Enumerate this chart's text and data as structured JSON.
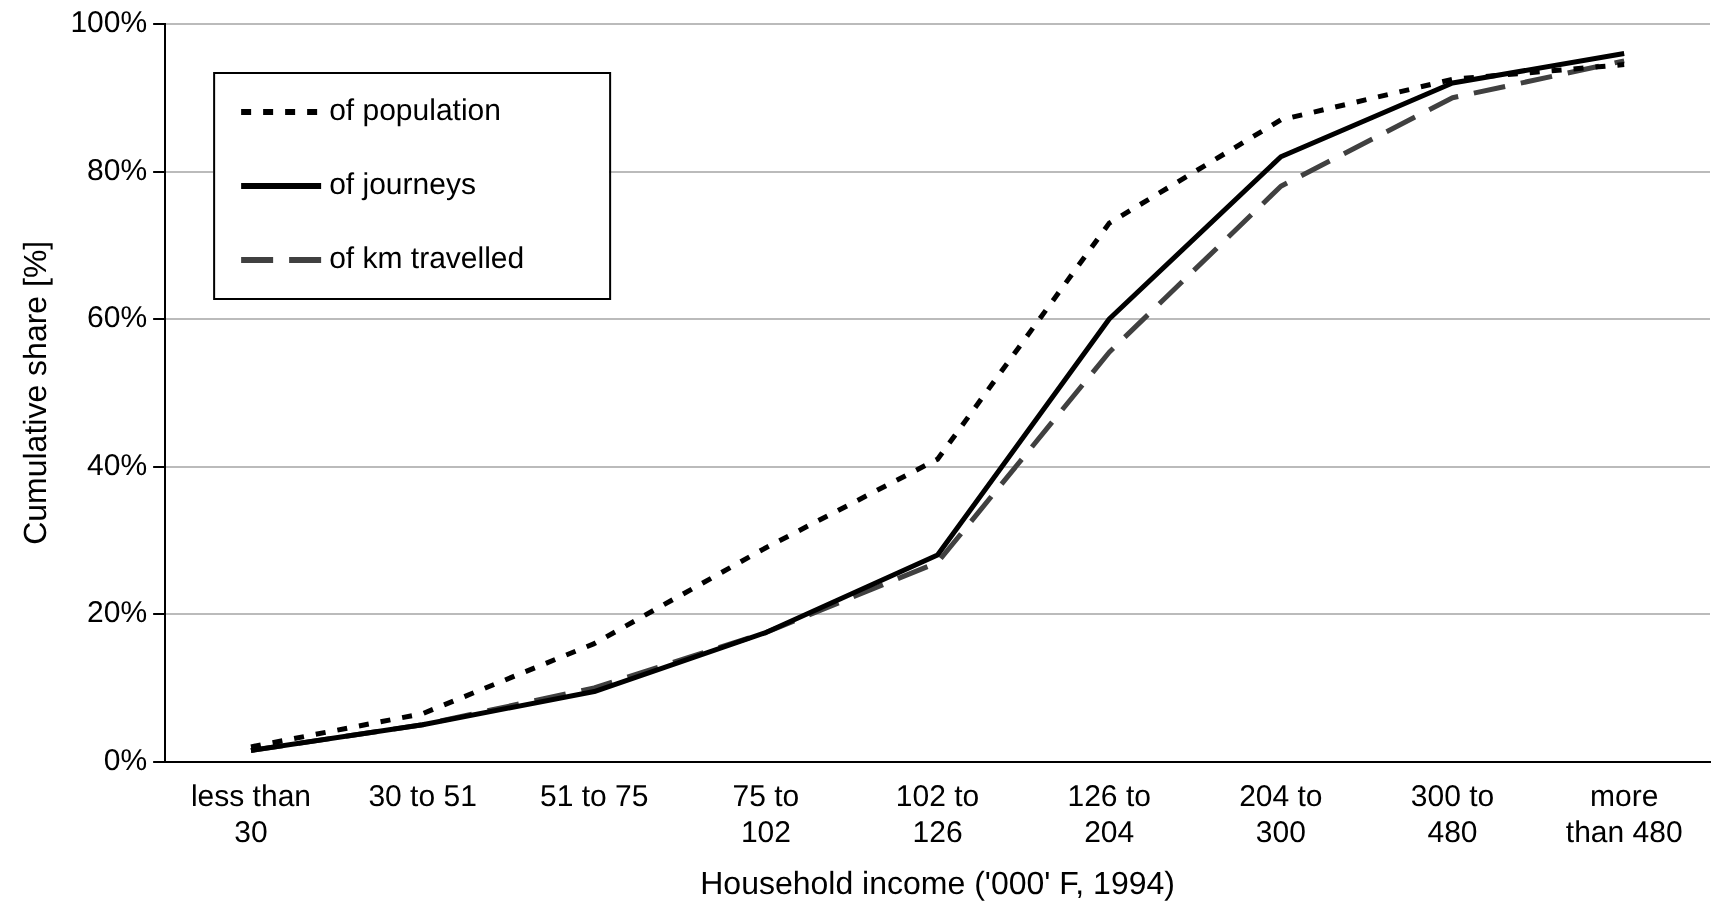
{
  "chart_data": {
    "type": "line",
    "xlabel": "Household income ('000' F, 1994)",
    "ylabel": "Cumulative share [%]",
    "categories": [
      "less than 30",
      "30 to 51",
      "51 to 75",
      "75 to 102",
      "102 to 126",
      "126 to 204",
      "204 to 300",
      "300 to 480",
      "more than 480"
    ],
    "series": [
      {
        "name": "of population",
        "color": "#000000",
        "line_style": "dotted",
        "values": [
          2,
          6.5,
          16,
          29,
          41,
          73,
          87,
          92.5,
          94.5
        ]
      },
      {
        "name": "of journeys",
        "color": "#000000",
        "line_style": "solid",
        "values": [
          1.5,
          5,
          9.5,
          17.5,
          28,
          60,
          82,
          92,
          96
        ]
      },
      {
        "name": "of km travelled",
        "color": "#404040",
        "line_style": "dashed",
        "values": [
          1.5,
          5,
          10,
          17.5,
          27,
          55.5,
          78,
          90,
          95
        ]
      }
    ],
    "ylim": [
      0,
      100
    ],
    "yticks": [
      {
        "value": 0,
        "label": "0%"
      },
      {
        "value": 20,
        "label": "20%"
      },
      {
        "value": 40,
        "label": "40%"
      },
      {
        "value": 60,
        "label": "60%"
      },
      {
        "value": 80,
        "label": "80%"
      },
      {
        "value": 100,
        "label": "100%"
      }
    ],
    "grid": "y",
    "legend": "top left",
    "marker": "none"
  }
}
